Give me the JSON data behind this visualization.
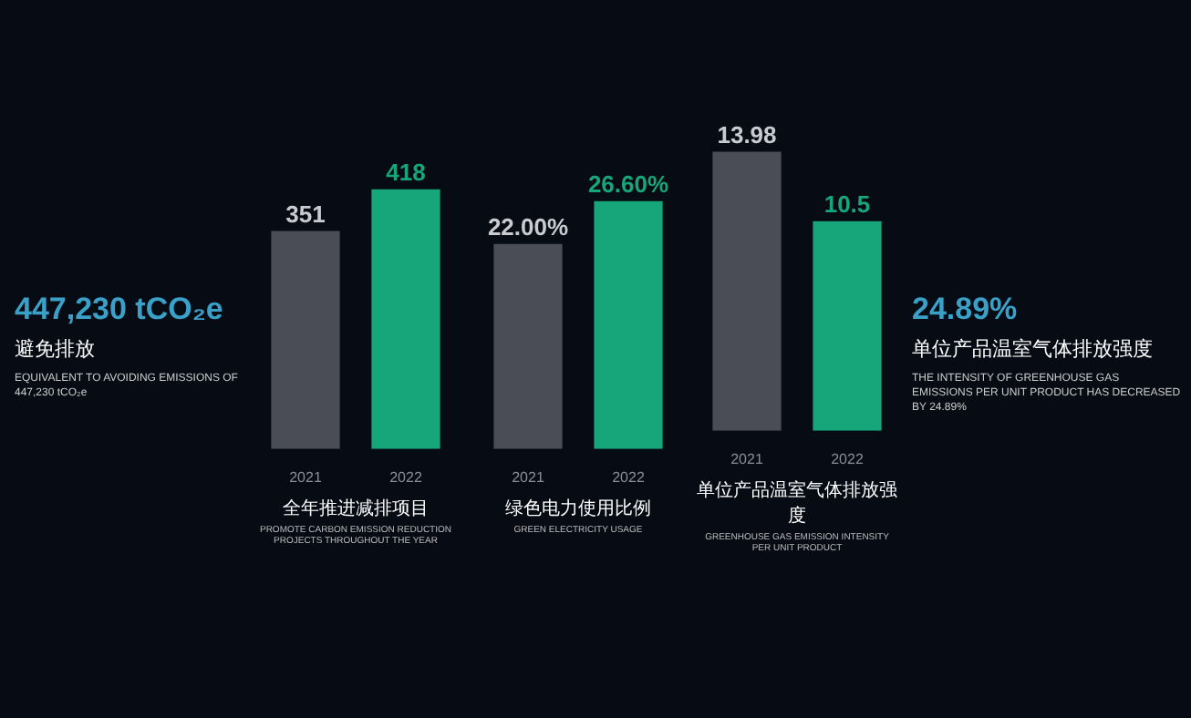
{
  "chart_data": [
    {
      "type": "other",
      "title": "447,230 tCO₂e",
      "subtitle": "避免排放",
      "annotations": [
        "EQUIVALENT TO AVOIDING EMISSIONS OF 447,230 tCO₂e"
      ]
    },
    {
      "type": "bar",
      "categories": [
        "2021",
        "2022"
      ],
      "values": [
        351,
        418
      ],
      "colors": [
        "#4a4d55",
        "#17a57a"
      ],
      "data_labels": true,
      "xlabel": "全年推进减排项目",
      "annotations": [
        "PROMOTE CARBON EMISSION REDUCTION PROJECTS THROUGHOUT THE YEAR"
      ]
    },
    {
      "type": "bar",
      "categories": [
        "2021",
        "2022"
      ],
      "values": [
        22,
        26.6
      ],
      "value_labels": [
        "22.00%",
        "26.60%"
      ],
      "colors": [
        "#4a4d55",
        "#17a57a"
      ],
      "xlabel": "绿色电力使用比例",
      "annotations": [
        "GREEN ELECTRICITY USAGE"
      ]
    },
    {
      "type": "bar",
      "categories": [
        "2021",
        "2022"
      ],
      "values": [
        13.98,
        10.5
      ],
      "colors": [
        "#4a4d55",
        "#17a57a"
      ],
      "data_labels": true,
      "xlabel": "单位产品温室气体排放强度",
      "annotations": [
        "GREENHOUSE GAS EMISSION INTENSITY PER UNIT PRODUCT"
      ]
    },
    {
      "type": "other",
      "title": "24.89%",
      "subtitle": "单位产品温室气体排放强度",
      "annotations": [
        "THE INTENSITY OF GREENHOUSE GAS EMISSIONS PER UNIT PRODUCT HAS DECREASED BY 24.89%"
      ]
    }
  ]
}
